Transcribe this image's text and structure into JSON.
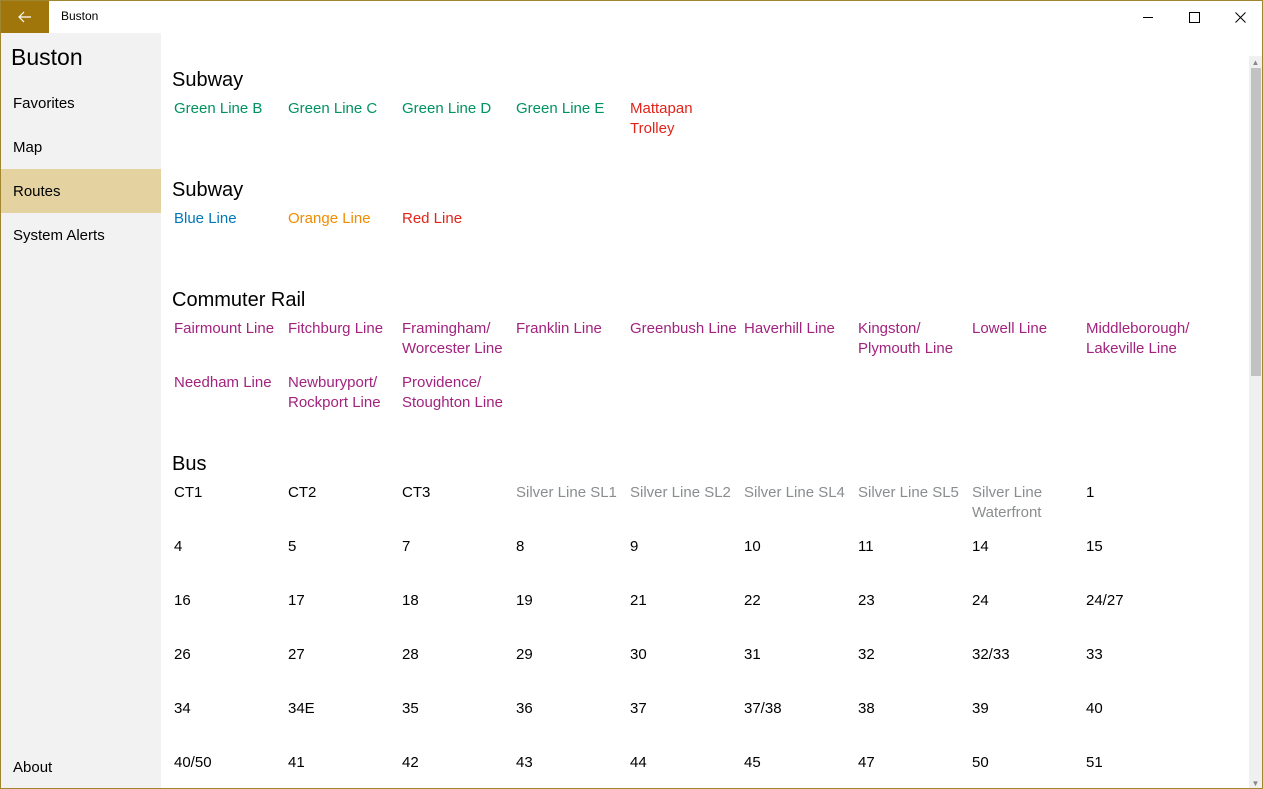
{
  "window": {
    "title": "Buston"
  },
  "sidebar": {
    "heading": "Buston",
    "items": [
      {
        "label": "Favorites"
      },
      {
        "label": "Map"
      },
      {
        "label": "Routes",
        "selected": true
      },
      {
        "label": "System Alerts"
      }
    ],
    "about": "About"
  },
  "colors": {
    "accent": "#a0760a",
    "selected_nav": "#e4d3a0",
    "green_line": "#00935f",
    "red_line": "#e2231a",
    "blue_line": "#0078b9",
    "orange_line": "#f08c00",
    "commuter_rail": "#a2237e",
    "silver_line": "#8a8d8f",
    "bus": "#000000"
  },
  "sections": [
    {
      "title": "Subway",
      "routes": [
        {
          "name": "Green Line B",
          "color": "#00935f"
        },
        {
          "name": "Green Line C",
          "color": "#00935f"
        },
        {
          "name": "Green Line D",
          "color": "#00935f"
        },
        {
          "name": "Green Line E",
          "color": "#00935f"
        },
        {
          "name": "Mattapan Trolley",
          "color": "#e2231a"
        }
      ]
    },
    {
      "title": "Subway",
      "routes": [
        {
          "name": "Blue Line",
          "color": "#0078b9"
        },
        {
          "name": "Orange Line",
          "color": "#f08c00"
        },
        {
          "name": "Red Line",
          "color": "#e2231a"
        }
      ]
    },
    {
      "title": "Commuter Rail",
      "routes": [
        {
          "name": "Fairmount Line",
          "color": "#a2237e"
        },
        {
          "name": "Fitchburg Line",
          "color": "#a2237e"
        },
        {
          "name": "Framingham/ Worcester Line",
          "color": "#a2237e"
        },
        {
          "name": "Franklin Line",
          "color": "#a2237e"
        },
        {
          "name": "Greenbush Line",
          "color": "#a2237e"
        },
        {
          "name": "Haverhill Line",
          "color": "#a2237e"
        },
        {
          "name": "Kingston/ Plymouth Line",
          "color": "#a2237e"
        },
        {
          "name": "Lowell Line",
          "color": "#a2237e"
        },
        {
          "name": "Middleborough/ Lakeville Line",
          "color": "#a2237e"
        },
        {
          "name": "Needham Line",
          "color": "#a2237e"
        },
        {
          "name": "Newburyport/ Rockport Line",
          "color": "#a2237e"
        },
        {
          "name": "Providence/ Stoughton Line",
          "color": "#a2237e"
        }
      ]
    },
    {
      "title": "Bus",
      "routes": [
        {
          "name": "CT1",
          "color": "#000000"
        },
        {
          "name": "CT2",
          "color": "#000000"
        },
        {
          "name": "CT3",
          "color": "#000000"
        },
        {
          "name": "Silver Line SL1",
          "color": "#8a8d8f"
        },
        {
          "name": "Silver Line SL2",
          "color": "#8a8d8f"
        },
        {
          "name": "Silver Line SL4",
          "color": "#8a8d8f"
        },
        {
          "name": "Silver Line SL5",
          "color": "#8a8d8f"
        },
        {
          "name": "Silver Line Waterfront",
          "color": "#8a8d8f"
        },
        {
          "name": "1",
          "color": "#000000"
        },
        {
          "name": "4",
          "color": "#000000"
        },
        {
          "name": "5",
          "color": "#000000"
        },
        {
          "name": "7",
          "color": "#000000"
        },
        {
          "name": "8",
          "color": "#000000"
        },
        {
          "name": "9",
          "color": "#000000"
        },
        {
          "name": "10",
          "color": "#000000"
        },
        {
          "name": "11",
          "color": "#000000"
        },
        {
          "name": "14",
          "color": "#000000"
        },
        {
          "name": "15",
          "color": "#000000"
        },
        {
          "name": "16",
          "color": "#000000"
        },
        {
          "name": "17",
          "color": "#000000"
        },
        {
          "name": "18",
          "color": "#000000"
        },
        {
          "name": "19",
          "color": "#000000"
        },
        {
          "name": "21",
          "color": "#000000"
        },
        {
          "name": "22",
          "color": "#000000"
        },
        {
          "name": "23",
          "color": "#000000"
        },
        {
          "name": "24",
          "color": "#000000"
        },
        {
          "name": "24/27",
          "color": "#000000"
        },
        {
          "name": "26",
          "color": "#000000"
        },
        {
          "name": "27",
          "color": "#000000"
        },
        {
          "name": "28",
          "color": "#000000"
        },
        {
          "name": "29",
          "color": "#000000"
        },
        {
          "name": "30",
          "color": "#000000"
        },
        {
          "name": "31",
          "color": "#000000"
        },
        {
          "name": "32",
          "color": "#000000"
        },
        {
          "name": "32/33",
          "color": "#000000"
        },
        {
          "name": "33",
          "color": "#000000"
        },
        {
          "name": "34",
          "color": "#000000"
        },
        {
          "name": "34E",
          "color": "#000000"
        },
        {
          "name": "35",
          "color": "#000000"
        },
        {
          "name": "36",
          "color": "#000000"
        },
        {
          "name": "37",
          "color": "#000000"
        },
        {
          "name": "37/38",
          "color": "#000000"
        },
        {
          "name": "38",
          "color": "#000000"
        },
        {
          "name": "39",
          "color": "#000000"
        },
        {
          "name": "40",
          "color": "#000000"
        },
        {
          "name": "40/50",
          "color": "#000000"
        },
        {
          "name": "41",
          "color": "#000000"
        },
        {
          "name": "42",
          "color": "#000000"
        },
        {
          "name": "43",
          "color": "#000000"
        },
        {
          "name": "44",
          "color": "#000000"
        },
        {
          "name": "45",
          "color": "#000000"
        },
        {
          "name": "47",
          "color": "#000000"
        },
        {
          "name": "50",
          "color": "#000000"
        },
        {
          "name": "51",
          "color": "#000000"
        }
      ]
    }
  ]
}
